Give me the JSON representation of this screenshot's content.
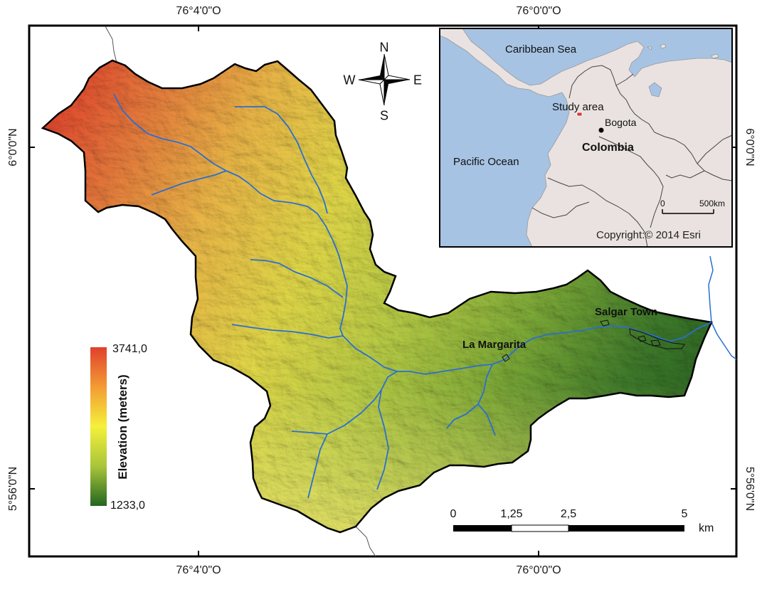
{
  "coordinates": {
    "top": [
      "76°4'0\"O",
      "76°0'0\"O"
    ],
    "bottom": [
      "76°4'0\"O",
      "76°0'0\"O"
    ],
    "left": [
      "6°0'0\"N",
      "5°56'0\"N"
    ],
    "right": [
      "6°0'0\"N",
      "5°56'0\"N"
    ]
  },
  "places": {
    "la_margarita": "La Margarita",
    "salgar_town": "Salgar Town"
  },
  "compass": {
    "n": "N",
    "s": "S",
    "e": "E",
    "w": "W"
  },
  "inset": {
    "caribbean_sea": "Caribbean Sea",
    "pacific_ocean": "Pacific Ocean",
    "study_area": "Study area",
    "bogota": "Bogota",
    "colombia": "Colombia",
    "scale_zero": "0",
    "scale_end": "500km",
    "copyright": "Copyright:© 2014 Esri"
  },
  "legend": {
    "title": "Elevation (meters)",
    "max": "3741,0",
    "min": "1233,0",
    "colors": [
      "#e0412c",
      "#f39b34",
      "#f5e63a",
      "#a9c53a",
      "#23661f"
    ]
  },
  "scalebar": {
    "ticks": [
      "0",
      "1,25",
      "2,5",
      "5"
    ],
    "unit": "km"
  },
  "colors": {
    "water": "#a6c3e3",
    "land": "#e9e3e1",
    "river": "#2b6fd1",
    "outline": "#000000"
  }
}
